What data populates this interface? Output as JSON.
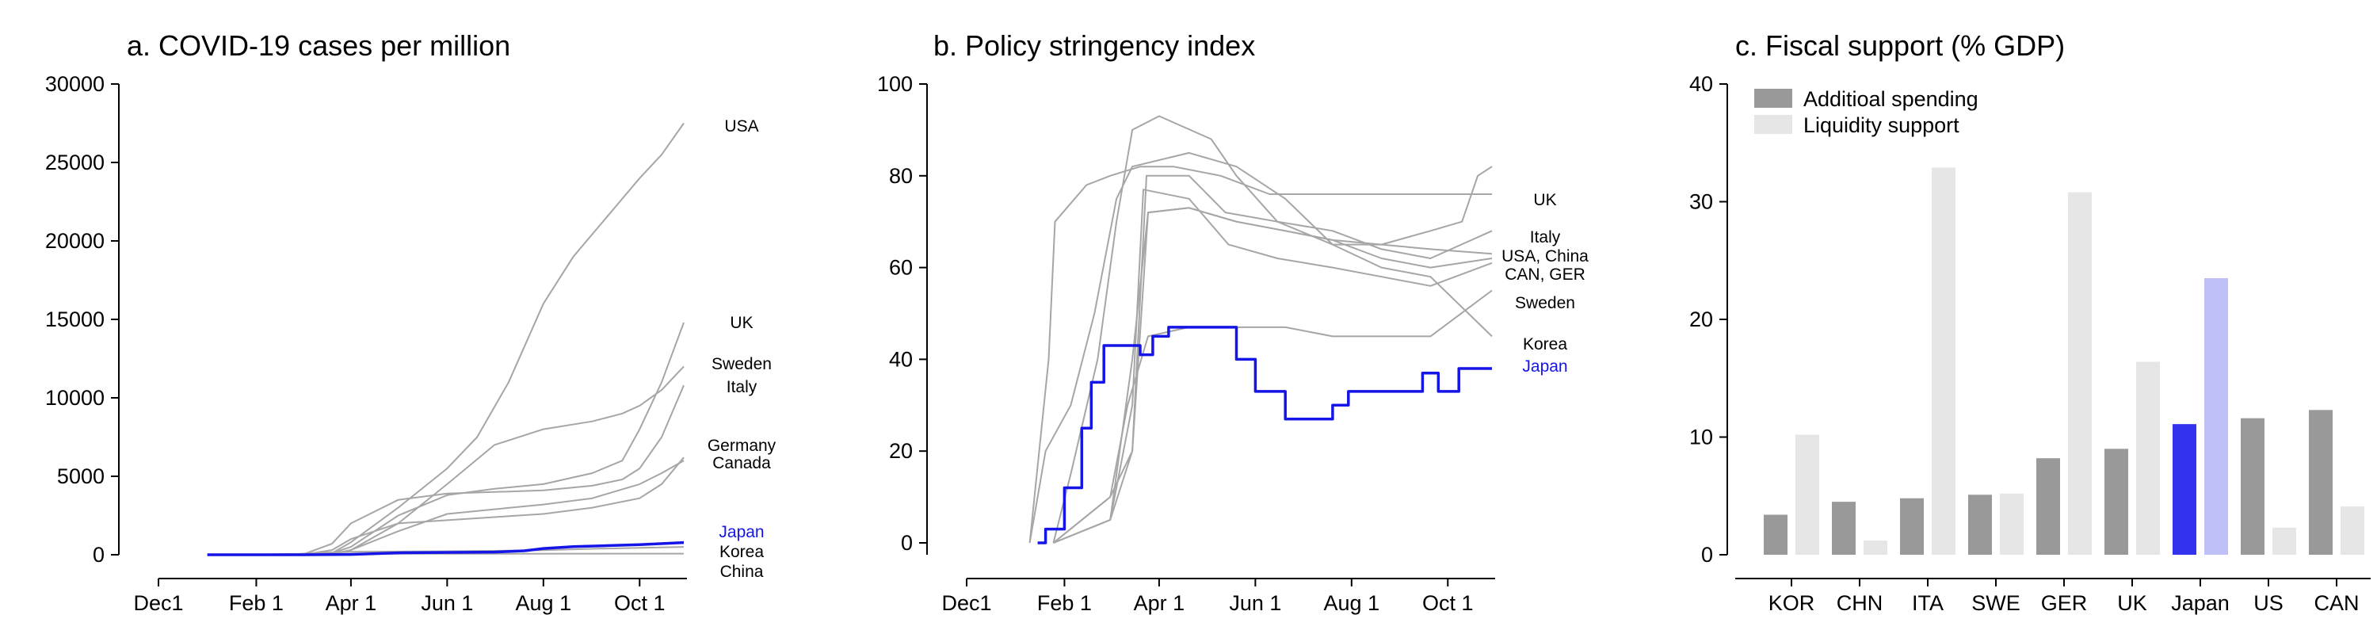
{
  "colors": {
    "grey_line": "#a6a6a6",
    "highlight": "#1515e8",
    "bar_spending": "#999999",
    "bar_liquidity": "#e6e6e6",
    "bar_spending_highlight": "#3333ee",
    "bar_liquidity_highlight": "#c0c0f8"
  },
  "chart_data": [
    {
      "type": "line",
      "title": "a. COVID-19 cases per million",
      "ylim": [
        0,
        30000
      ],
      "yticks": [
        0,
        5000,
        10000,
        15000,
        20000,
        25000,
        30000
      ],
      "xlim": [
        "2019-12-01",
        "2020-10-31"
      ],
      "xticks": [
        {
          "date": "2019-12-01",
          "label": "Dec1"
        },
        {
          "date": "2020-02-01",
          "label": "Feb 1"
        },
        {
          "date": "2020-04-01",
          "label": "Apr 1"
        },
        {
          "date": "2020-06-01",
          "label": "Jun 1"
        },
        {
          "date": "2020-08-01",
          "label": "Aug 1"
        },
        {
          "date": "2020-10-01",
          "label": "Oct 1"
        }
      ],
      "highlight": "Japan",
      "series": [
        {
          "name": "USA",
          "x": [
            "2020-01-01",
            "2020-03-01",
            "2020-03-20",
            "2020-04-01",
            "2020-05-01",
            "2020-06-01",
            "2020-06-20",
            "2020-07-10",
            "2020-08-01",
            "2020-08-20",
            "2020-09-10",
            "2020-10-01",
            "2020-10-15",
            "2020-10-29"
          ],
          "y": [
            0,
            0,
            100,
            800,
            3000,
            5500,
            7500,
            11000,
            16000,
            19000,
            21500,
            24000,
            25500,
            27500
          ]
        },
        {
          "name": "UK",
          "x": [
            "2020-01-01",
            "2020-03-01",
            "2020-03-20",
            "2020-04-01",
            "2020-05-01",
            "2020-06-01",
            "2020-07-01",
            "2020-08-01",
            "2020-09-01",
            "2020-09-20",
            "2020-10-01",
            "2020-10-15",
            "2020-10-29"
          ],
          "y": [
            0,
            0,
            100,
            500,
            2500,
            3800,
            4200,
            4500,
            5200,
            6000,
            8000,
            11000,
            14800
          ]
        },
        {
          "name": "Sweden",
          "x": [
            "2020-01-01",
            "2020-03-01",
            "2020-03-20",
            "2020-04-01",
            "2020-05-01",
            "2020-06-01",
            "2020-07-01",
            "2020-08-01",
            "2020-09-01",
            "2020-09-20",
            "2020-10-01",
            "2020-10-15",
            "2020-10-29"
          ],
          "y": [
            0,
            0,
            50,
            300,
            2000,
            4500,
            7000,
            8000,
            8500,
            9000,
            9500,
            10500,
            12000
          ]
        },
        {
          "name": "Italy",
          "x": [
            "2020-01-01",
            "2020-03-01",
            "2020-03-20",
            "2020-04-01",
            "2020-05-01",
            "2020-06-01",
            "2020-07-01",
            "2020-08-01",
            "2020-09-01",
            "2020-09-20",
            "2020-10-01",
            "2020-10-15",
            "2020-10-29"
          ],
          "y": [
            0,
            0,
            700,
            2000,
            3500,
            3900,
            4000,
            4100,
            4400,
            4800,
            5500,
            7500,
            10800
          ]
        },
        {
          "name": "Germany",
          "x": [
            "2020-01-01",
            "2020-03-01",
            "2020-03-20",
            "2020-04-01",
            "2020-05-01",
            "2020-06-01",
            "2020-07-01",
            "2020-08-01",
            "2020-09-01",
            "2020-10-01",
            "2020-10-15",
            "2020-10-29"
          ],
          "y": [
            0,
            0,
            300,
            1000,
            2000,
            2200,
            2400,
            2600,
            3000,
            3600,
            4500,
            6200
          ]
        },
        {
          "name": "Canada",
          "x": [
            "2020-01-01",
            "2020-03-01",
            "2020-03-20",
            "2020-04-01",
            "2020-05-01",
            "2020-06-01",
            "2020-07-01",
            "2020-08-01",
            "2020-09-01",
            "2020-10-01",
            "2020-10-15",
            "2020-10-29"
          ],
          "y": [
            0,
            0,
            50,
            300,
            1500,
            2600,
            2900,
            3200,
            3600,
            4500,
            5200,
            6000
          ]
        },
        {
          "name": "Korea",
          "x": [
            "2020-01-01",
            "2020-02-20",
            "2020-03-10",
            "2020-04-01",
            "2020-06-01",
            "2020-08-01",
            "2020-09-01",
            "2020-10-29"
          ],
          "y": [
            0,
            0,
            120,
            190,
            220,
            290,
            380,
            500
          ]
        },
        {
          "name": "China",
          "x": [
            "2020-01-01",
            "2020-02-01",
            "2020-02-20",
            "2020-03-10",
            "2020-10-29"
          ],
          "y": [
            0,
            10,
            50,
            60,
            70
          ]
        },
        {
          "name": "Japan",
          "x": [
            "2020-01-01",
            "2020-03-01",
            "2020-04-01",
            "2020-05-01",
            "2020-07-01",
            "2020-07-20",
            "2020-08-01",
            "2020-08-20",
            "2020-09-10",
            "2020-10-01",
            "2020-10-29"
          ],
          "y": [
            0,
            0,
            20,
            120,
            170,
            250,
            400,
            520,
            580,
            640,
            780
          ]
        }
      ],
      "labels": [
        "USA",
        "UK",
        "Sweden",
        "Italy",
        "Germany",
        "Canada",
        "Japan",
        "Korea",
        "China"
      ]
    },
    {
      "type": "line",
      "title": "b. Policy stringency index",
      "ylim": [
        0,
        100
      ],
      "yticks": [
        0,
        20,
        40,
        60,
        80,
        100
      ],
      "xlim": [
        "2019-12-01",
        "2020-10-31"
      ],
      "xticks": [
        {
          "date": "2019-12-01",
          "label": "Dec1"
        },
        {
          "date": "2020-02-01",
          "label": "Feb 1"
        },
        {
          "date": "2020-04-01",
          "label": "Apr 1"
        },
        {
          "date": "2020-06-01",
          "label": "Jun 1"
        },
        {
          "date": "2020-08-01",
          "label": "Aug 1"
        },
        {
          "date": "2020-10-01",
          "label": "Oct 1"
        }
      ],
      "highlight": "Japan",
      "series": [
        {
          "name": "China",
          "x": [
            "2020-01-10",
            "2020-01-22",
            "2020-01-26",
            "2020-02-15",
            "2020-03-01",
            "2020-03-20",
            "2020-04-10",
            "2020-05-10",
            "2020-06-10",
            "2020-07-15",
            "2020-08-20",
            "2020-09-20",
            "2020-10-29"
          ],
          "y": [
            0,
            40,
            70,
            78,
            80,
            82,
            82,
            80,
            76,
            76,
            76,
            76,
            76
          ]
        },
        {
          "name": "Korea",
          "x": [
            "2020-01-10",
            "2020-01-20",
            "2020-02-05",
            "2020-02-20",
            "2020-03-05",
            "2020-03-15",
            "2020-04-20",
            "2020-05-20",
            "2020-06-20",
            "2020-07-20",
            "2020-08-20",
            "2020-09-20",
            "2020-10-29"
          ],
          "y": [
            0,
            20,
            30,
            50,
            75,
            82,
            85,
            82,
            75,
            65,
            60,
            58,
            45
          ]
        },
        {
          "name": "Italy",
          "x": [
            "2020-01-25",
            "2020-02-05",
            "2020-02-22",
            "2020-03-05",
            "2020-03-15",
            "2020-04-01",
            "2020-05-04",
            "2020-05-20",
            "2020-06-15",
            "2020-07-20",
            "2020-08-20",
            "2020-09-20",
            "2020-10-29"
          ],
          "y": [
            0,
            15,
            40,
            70,
            90,
            93,
            88,
            80,
            70,
            68,
            64,
            62,
            68
          ]
        },
        {
          "name": "UK",
          "x": [
            "2020-01-25",
            "2020-03-01",
            "2020-03-15",
            "2020-03-24",
            "2020-04-20",
            "2020-05-13",
            "2020-06-15",
            "2020-07-20",
            "2020-08-20",
            "2020-09-20",
            "2020-10-10",
            "2020-10-20",
            "2020-10-29"
          ],
          "y": [
            0,
            10,
            20,
            80,
            80,
            72,
            70,
            65,
            65,
            68,
            70,
            80,
            82
          ]
        },
        {
          "name": "USA",
          "x": [
            "2020-01-25",
            "2020-03-01",
            "2020-03-15",
            "2020-03-25",
            "2020-04-20",
            "2020-05-20",
            "2020-06-20",
            "2020-07-20",
            "2020-08-20",
            "2020-09-20",
            "2020-10-29"
          ],
          "y": [
            0,
            5,
            20,
            72,
            73,
            70,
            68,
            66,
            65,
            64,
            63
          ]
        },
        {
          "name": "Germany",
          "x": [
            "2020-01-25",
            "2020-03-01",
            "2020-03-15",
            "2020-03-22",
            "2020-04-20",
            "2020-05-15",
            "2020-06-15",
            "2020-07-20",
            "2020-08-20",
            "2020-09-20",
            "2020-10-29"
          ],
          "y": [
            0,
            5,
            30,
            77,
            75,
            65,
            62,
            60,
            58,
            56,
            61
          ]
        },
        {
          "name": "Canada",
          "x": [
            "2020-01-25",
            "2020-03-01",
            "2020-03-15",
            "2020-03-25",
            "2020-04-20",
            "2020-05-20",
            "2020-06-20",
            "2020-07-20",
            "2020-08-20",
            "2020-09-20",
            "2020-10-29"
          ],
          "y": [
            0,
            5,
            40,
            72,
            73,
            70,
            68,
            66,
            62,
            60,
            62
          ]
        },
        {
          "name": "Sweden",
          "x": [
            "2020-01-25",
            "2020-03-01",
            "2020-03-12",
            "2020-03-25",
            "2020-04-20",
            "2020-05-20",
            "2020-06-20",
            "2020-07-20",
            "2020-08-20",
            "2020-09-20",
            "2020-10-29"
          ],
          "y": [
            0,
            10,
            30,
            45,
            47,
            47,
            47,
            45,
            45,
            45,
            55
          ]
        },
        {
          "name": "Japan",
          "x": [
            "2020-01-15",
            "2020-01-20",
            "2020-01-20",
            "2020-02-01",
            "2020-02-01",
            "2020-02-12",
            "2020-02-12",
            "2020-02-18",
            "2020-02-18",
            "2020-02-26",
            "2020-02-26",
            "2020-03-20",
            "2020-03-20",
            "2020-03-28",
            "2020-03-28",
            "2020-04-07",
            "2020-04-07",
            "2020-05-20",
            "2020-05-20",
            "2020-06-01",
            "2020-06-01",
            "2020-06-20",
            "2020-06-20",
            "2020-07-20",
            "2020-07-20",
            "2020-07-30",
            "2020-07-30",
            "2020-09-15",
            "2020-09-15",
            "2020-09-25",
            "2020-09-25",
            "2020-10-08",
            "2020-10-08",
            "2020-10-29"
          ],
          "y": [
            0,
            0,
            3,
            3,
            12,
            12,
            25,
            25,
            35,
            35,
            43,
            43,
            41,
            41,
            45,
            45,
            47,
            47,
            40,
            40,
            33,
            33,
            27,
            27,
            30,
            30,
            33,
            33,
            37,
            37,
            33,
            33,
            38,
            38
          ]
        }
      ],
      "labels": [
        "UK",
        "Italy",
        "USA, China",
        "CAN, GER",
        "Sweden",
        "Korea",
        "Japan"
      ]
    },
    {
      "type": "bar",
      "title": "c. Fiscal support (% GDP)",
      "ylim": [
        0,
        40
      ],
      "yticks": [
        0,
        10,
        20,
        30,
        40
      ],
      "categories": [
        "KOR",
        "CHN",
        "ITA",
        "SWE",
        "GER",
        "UK",
        "Japan",
        "US",
        "CAN"
      ],
      "highlight": "Japan",
      "series": [
        {
          "name": "Additioal spending",
          "values": [
            3.4,
            4.5,
            4.8,
            5.1,
            8.2,
            9.0,
            11.1,
            11.6,
            12.3
          ]
        },
        {
          "name": "Liquidity support",
          "values": [
            10.2,
            1.2,
            32.9,
            5.2,
            30.8,
            16.4,
            23.5,
            2.3,
            4.1
          ]
        }
      ],
      "legend": "top-left"
    }
  ]
}
